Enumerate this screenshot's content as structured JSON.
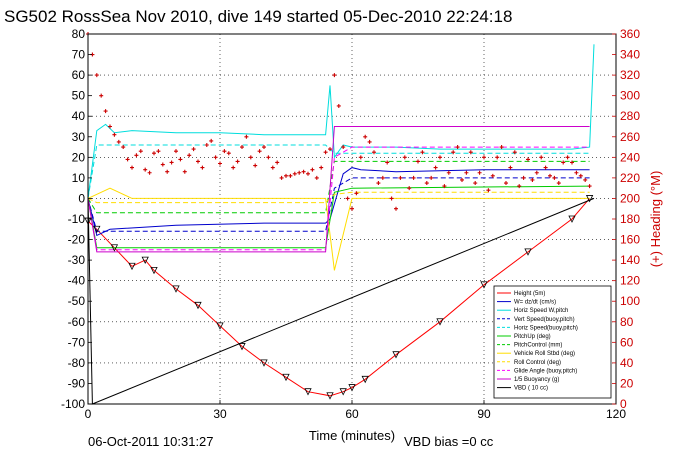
{
  "chart_data": {
    "type": "line",
    "title": "SG502 RossSea Nov 2010, dive 149 started 05-Dec-2010 22:24:18",
    "xlabel": "Time (minutes)",
    "ylabel": "",
    "ylabel_right": "(+) Heading (°M)",
    "xlim": [
      0,
      120
    ],
    "ylim": [
      -100,
      80
    ],
    "ylim_right": [
      0,
      360
    ],
    "x_ticks": [
      0,
      30,
      60,
      90,
      120
    ],
    "y_ticks": [
      -100,
      -90,
      -80,
      -70,
      -60,
      -50,
      -40,
      -30,
      -20,
      -10,
      0,
      10,
      20,
      30,
      40,
      50,
      60,
      70,
      80
    ],
    "y_ticks_right": [
      0,
      20,
      40,
      60,
      80,
      100,
      120,
      140,
      160,
      180,
      200,
      220,
      240,
      260,
      280,
      300,
      320,
      340,
      360
    ],
    "grid": true,
    "legend_position": "lower-right",
    "left_axis_color": "#000000",
    "right_axis_color": "#cc0000",
    "series": [
      {
        "name": "Height (5m)",
        "color": "#ff0000",
        "style": "solid",
        "x": [
          0,
          2,
          6,
          10,
          13,
          15,
          20,
          25,
          30,
          35,
          40,
          45,
          50,
          55,
          58,
          60,
          63,
          70,
          80,
          90,
          100,
          110,
          114
        ],
        "y": [
          -11,
          -15,
          -24,
          -33,
          -30,
          -35,
          -44,
          -52,
          -62,
          -72,
          -80,
          -87,
          -94,
          -96,
          -94,
          -92,
          -88,
          -76,
          -60,
          -42,
          -26,
          -10,
          0
        ]
      },
      {
        "name": "W= dz/dt (cm/s)",
        "color": "#0000cc",
        "style": "solid",
        "x": [
          0,
          2,
          5,
          20,
          40,
          54,
          55,
          58,
          60,
          62,
          70,
          90,
          114
        ],
        "y": [
          0,
          -18,
          -15,
          -13,
          -12,
          -12,
          -10,
          12,
          15,
          14,
          13,
          14,
          14
        ]
      },
      {
        "name": "Horiz Speed W,pitch",
        "color": "#00dddd",
        "style": "solid",
        "x": [
          0,
          2,
          4,
          6,
          10,
          20,
          30,
          40,
          50,
          54,
          55,
          56,
          58,
          60,
          70,
          80,
          90,
          100,
          110,
          114,
          115
        ],
        "y": [
          0,
          33,
          36,
          32,
          33,
          32,
          32,
          31,
          31,
          31,
          55,
          20,
          26,
          25,
          25,
          24,
          24,
          24,
          24,
          25,
          75
        ]
      },
      {
        "name": "Vert Speed(buoy,pitch)",
        "color": "#0000cc",
        "style": "dashed",
        "x": [
          0,
          2,
          54,
          56,
          60,
          114
        ],
        "y": [
          0,
          -16,
          -16,
          5,
          10,
          10
        ]
      },
      {
        "name": "Horiz Speed(buoy,pitch)",
        "color": "#00dddd",
        "style": "dashed",
        "x": [
          0,
          2,
          54,
          56,
          60,
          114
        ],
        "y": [
          0,
          26,
          26,
          22,
          22,
          22
        ]
      },
      {
        "name": "PitchUp (deg)",
        "color": "#00cc00",
        "style": "solid",
        "x": [
          0,
          2,
          54,
          56,
          60,
          114
        ],
        "y": [
          0,
          -24,
          -24,
          3,
          5,
          6
        ]
      },
      {
        "name": "PitchControl (mm)",
        "color": "#00cc00",
        "style": "dashed",
        "x": [
          0,
          2,
          54,
          56,
          60,
          114
        ],
        "y": [
          0,
          -7,
          -7,
          18,
          18,
          18
        ]
      },
      {
        "name": "Vehicle Roll Stbd (deg)",
        "color": "#ffdd00",
        "style": "solid",
        "x": [
          0,
          5,
          10,
          20,
          30,
          40,
          50,
          54,
          56,
          60,
          70,
          80,
          90,
          100,
          110,
          114
        ],
        "y": [
          0,
          5,
          0,
          0,
          0,
          0,
          0,
          0,
          -35,
          0,
          0,
          0,
          0,
          0,
          0,
          0
        ]
      },
      {
        "name": "Roll Control (deg)",
        "color": "#ffdd00",
        "style": "dashed",
        "x": [
          0,
          2,
          54,
          56,
          60,
          114
        ],
        "y": [
          0,
          -2,
          -2,
          2,
          3,
          3
        ]
      },
      {
        "name": "Glide Angle (buoy,pitch)",
        "color": "#ff00ff",
        "style": "dashed",
        "x": [
          0,
          2,
          54,
          56,
          60,
          114
        ],
        "y": [
          0,
          -25,
          -25,
          20,
          25,
          25
        ]
      },
      {
        "name": "1/5 Buoyancy (g)",
        "color": "#cc00cc",
        "style": "solid",
        "x": [
          0,
          2,
          54,
          56,
          60,
          114
        ],
        "y": [
          0,
          -26,
          -26,
          35,
          35,
          35
        ]
      },
      {
        "name": "VBD ( 10 cc)",
        "color": "#000000",
        "style": "solid",
        "x": [
          0,
          1,
          115
        ],
        "y": [
          0,
          -100,
          0
        ]
      }
    ],
    "heading": {
      "name": "(+) Heading (°M)",
      "color": "#cc0000",
      "x": [
        0,
        1,
        2,
        3,
        4,
        5,
        6,
        7,
        8,
        9,
        10,
        11,
        12,
        13,
        14,
        15,
        16,
        17,
        18,
        19,
        20,
        21,
        22,
        23,
        24,
        25,
        26,
        27,
        28,
        29,
        30,
        31,
        32,
        33,
        34,
        35,
        36,
        37,
        38,
        39,
        40,
        41,
        42,
        43,
        44,
        45,
        46,
        47,
        48,
        49,
        50,
        51,
        52,
        53,
        54,
        55,
        56,
        57,
        58,
        59,
        60,
        61,
        62,
        63,
        64,
        65,
        66,
        67,
        68,
        69,
        70,
        71,
        72,
        73,
        74,
        75,
        76,
        77,
        78,
        79,
        80,
        81,
        82,
        83,
        84,
        85,
        86,
        87,
        88,
        89,
        90,
        91,
        92,
        93,
        94,
        95,
        96,
        97,
        98,
        99,
        100,
        101,
        102,
        103,
        104,
        105,
        106,
        107,
        108,
        109,
        110,
        111,
        112,
        113,
        114
      ],
      "y": [
        360,
        340,
        320,
        300,
        285,
        270,
        262,
        255,
        250,
        238,
        230,
        242,
        246,
        228,
        225,
        244,
        246,
        233,
        226,
        235,
        246,
        238,
        226,
        242,
        248,
        236,
        230,
        252,
        256,
        240,
        234,
        246,
        244,
        230,
        236,
        250,
        260,
        240,
        232,
        246,
        250,
        240,
        230,
        235,
        220,
        222,
        222,
        224,
        225,
        226,
        224,
        228,
        220,
        230,
        245,
        248,
        320,
        290,
        250,
        200,
        190,
        205,
        240,
        260,
        255,
        245,
        215,
        220,
        235,
        200,
        190,
        220,
        240,
        210,
        220,
        236,
        245,
        215,
        220,
        230,
        240,
        212,
        225,
        245,
        250,
        218,
        225,
        245,
        215,
        225,
        240,
        208,
        222,
        240,
        250,
        215,
        230,
        245,
        212,
        220,
        238,
        218,
        225,
        240,
        230,
        222,
        220,
        215,
        235,
        240,
        235,
        225,
        222,
        218,
        212
      ]
    }
  },
  "footer": {
    "date": "06-Oct-2011 10:31:27",
    "vbd_bias": "VBD bias =0 cc"
  }
}
